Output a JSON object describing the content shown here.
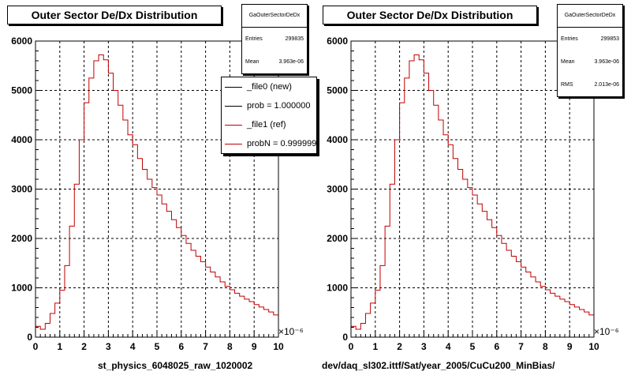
{
  "chart_data": [
    {
      "type": "histogram",
      "title": "Outer Sector De/Dx Distribution",
      "xlabel": "st_physics_6048025_raw_1020002",
      "x_exponent": "×10⁻⁶",
      "xlim": [
        0,
        10
      ],
      "ylim": [
        0,
        6000
      ],
      "grid": true,
      "x_ticks": [
        "0",
        "1",
        "2",
        "3",
        "4",
        "5",
        "6",
        "7",
        "8",
        "9",
        "10"
      ],
      "y_ticks": [
        "0",
        "1000",
        "2000",
        "3000",
        "4000",
        "5000",
        "6000"
      ],
      "bin_width": 0.2,
      "stats": {
        "title": "GaOuterSectorDeDx",
        "rows": [
          {
            "label": "Entries",
            "value": "299835"
          },
          {
            "label": "Mean",
            "value": "3.963e-06"
          }
        ]
      },
      "legend": {
        "position": "top-right",
        "entries": [
          {
            "label": "_file0 (new)",
            "color": "#000000"
          },
          {
            "label": "prob = 1.000000",
            "color": "#000000"
          },
          {
            "label": "_file1 (ref)",
            "color": "#c00000"
          },
          {
            "label": "probN = 0.999999",
            "color": "#c00000"
          }
        ]
      },
      "series": [
        {
          "color": "#c00000",
          "values": [
            220,
            160,
            280,
            480,
            690,
            950,
            1450,
            2250,
            3100,
            4000,
            4750,
            5250,
            5600,
            5720,
            5620,
            5350,
            5000,
            4700,
            4400,
            4100,
            3900,
            3620,
            3400,
            3200,
            3030,
            2880,
            2700,
            2550,
            2380,
            2220,
            2060,
            1900,
            1760,
            1640,
            1530,
            1420,
            1320,
            1220,
            1120,
            1030,
            960,
            890,
            830,
            770,
            720,
            660,
            610,
            560,
            510,
            450
          ]
        }
      ]
    },
    {
      "type": "histogram",
      "title": "Outer Sector De/Dx Distribution",
      "xlabel": "dev/daq_sl302.ittf/Sat/year_2005/CuCu200_MinBias/",
      "x_exponent": "×10⁻⁶",
      "xlim": [
        0,
        10
      ],
      "ylim": [
        0,
        6000
      ],
      "grid": true,
      "x_ticks": [
        "0",
        "1",
        "2",
        "3",
        "4",
        "5",
        "6",
        "7",
        "8",
        "9",
        "10"
      ],
      "y_ticks": [
        "0",
        "1000",
        "2000",
        "3000",
        "4000",
        "5000",
        "6000"
      ],
      "bin_width": 0.2,
      "stats": {
        "title": "GaOuterSectorDeDx",
        "rows": [
          {
            "label": "Entries",
            "value": "299853"
          },
          {
            "label": "Mean",
            "value": "3.963e-06"
          },
          {
            "label": "RMS",
            "value": "2.013e-06"
          }
        ]
      },
      "series": [
        {
          "color": "#c00000",
          "values": [
            220,
            160,
            280,
            480,
            690,
            950,
            1450,
            2250,
            3100,
            4000,
            4750,
            5250,
            5600,
            5720,
            5620,
            5350,
            5000,
            4700,
            4400,
            4100,
            3900,
            3620,
            3400,
            3200,
            3030,
            2880,
            2700,
            2550,
            2380,
            2220,
            2060,
            1900,
            1760,
            1640,
            1530,
            1420,
            1320,
            1220,
            1120,
            1030,
            960,
            890,
            830,
            770,
            720,
            660,
            610,
            560,
            510,
            450
          ]
        }
      ]
    }
  ]
}
